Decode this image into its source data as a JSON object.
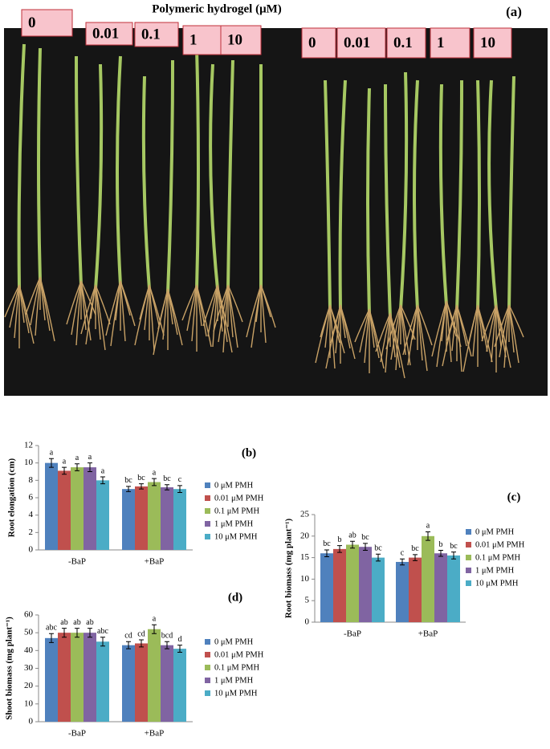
{
  "photo": {
    "title": "Polymeric hydrogel (μM)",
    "panel_label": "(a)",
    "labels_left": [
      "0",
      "0.01",
      "0.1",
      "1",
      "10"
    ],
    "labels_right": [
      "0",
      "0.01",
      "0.1",
      "1",
      "10"
    ]
  },
  "chart_data": [
    {
      "type": "bar",
      "panel_label": "(b)",
      "y_label": "Root elongation (cm)",
      "categories": [
        "-BaP",
        "+BaP"
      ],
      "ylim": [
        0,
        12
      ],
      "yticks": [
        0,
        2,
        4,
        6,
        8,
        10,
        12
      ],
      "grid": false,
      "series": [
        {
          "name": "0 μM PMH",
          "color": "#4f81bd",
          "values": [
            10.0,
            7.0
          ],
          "errors": [
            0.5,
            0.3
          ],
          "letters": [
            "a",
            "bc"
          ]
        },
        {
          "name": "0.01 μM PMH",
          "color": "#c0504d",
          "values": [
            9.1,
            7.3
          ],
          "errors": [
            0.4,
            0.3
          ],
          "letters": [
            "a",
            "bc"
          ]
        },
        {
          "name": "0.1 μM PMH",
          "color": "#9bbb59",
          "values": [
            9.5,
            7.8
          ],
          "errors": [
            0.4,
            0.4
          ],
          "letters": [
            "a",
            "a"
          ]
        },
        {
          "name": "1 μM PMH",
          "color": "#8064a2",
          "values": [
            9.5,
            7.2
          ],
          "errors": [
            0.5,
            0.3
          ],
          "letters": [
            "a",
            "bc"
          ]
        },
        {
          "name": "10 μM PMH",
          "color": "#4bacc6",
          "values": [
            8.0,
            7.0
          ],
          "errors": [
            0.4,
            0.4
          ],
          "letters": [
            "a",
            "c"
          ]
        }
      ]
    },
    {
      "type": "bar",
      "panel_label": "(c)",
      "y_label": "Root biomass (mg plant⁻¹)",
      "categories": [
        "-BaP",
        "+BaP"
      ],
      "ylim": [
        0,
        25
      ],
      "yticks": [
        0,
        5,
        10,
        15,
        20,
        25
      ],
      "grid": false,
      "series": [
        {
          "name": "0 μM PMH",
          "color": "#4f81bd",
          "values": [
            16,
            14
          ],
          "errors": [
            0.8,
            0.7
          ],
          "letters": [
            "bc",
            "c"
          ]
        },
        {
          "name": "0.01 μM PMH",
          "color": "#c0504d",
          "values": [
            17,
            15
          ],
          "errors": [
            0.8,
            0.7
          ],
          "letters": [
            "b",
            "bc"
          ]
        },
        {
          "name": "0.1 μM PMH",
          "color": "#9bbb59",
          "values": [
            18,
            20
          ],
          "errors": [
            0.8,
            1.0
          ],
          "letters": [
            "ab",
            "a"
          ]
        },
        {
          "name": "1 μM PMH",
          "color": "#8064a2",
          "values": [
            17.5,
            16
          ],
          "errors": [
            0.8,
            0.7
          ],
          "letters": [
            "bc",
            "b"
          ]
        },
        {
          "name": "10 μM PMH",
          "color": "#4bacc6",
          "values": [
            15,
            15.5
          ],
          "errors": [
            0.8,
            0.8
          ],
          "letters": [
            "bc",
            "bc"
          ]
        }
      ]
    },
    {
      "type": "bar",
      "panel_label": "(d)",
      "y_label": "Shoot biomass (mg plant⁻¹)",
      "categories": [
        "-BaP",
        "+BaP"
      ],
      "ylim": [
        0,
        60
      ],
      "yticks": [
        0,
        10,
        20,
        30,
        40,
        50,
        60
      ],
      "grid": false,
      "series": [
        {
          "name": "0 μM PMH",
          "color": "#4f81bd",
          "values": [
            47,
            43
          ],
          "errors": [
            2.5,
            2.0
          ],
          "letters": [
            "abc",
            "cd"
          ]
        },
        {
          "name": "0.01 μM PMH",
          "color": "#c0504d",
          "values": [
            50,
            44
          ],
          "errors": [
            2.5,
            2.0
          ],
          "letters": [
            "ab",
            "cd"
          ]
        },
        {
          "name": "0.1 μM PMH",
          "color": "#9bbb59",
          "values": [
            50,
            52
          ],
          "errors": [
            2.5,
            2.5
          ],
          "letters": [
            "ab",
            "a"
          ]
        },
        {
          "name": "1 μM PMH",
          "color": "#8064a2",
          "values": [
            50,
            43
          ],
          "errors": [
            2.5,
            2.0
          ],
          "letters": [
            "ab",
            "bcd"
          ]
        },
        {
          "name": "10 μM PMH",
          "color": "#4bacc6",
          "values": [
            45,
            41
          ],
          "errors": [
            2.5,
            2.0
          ],
          "letters": [
            "abc",
            "d"
          ]
        }
      ]
    }
  ]
}
